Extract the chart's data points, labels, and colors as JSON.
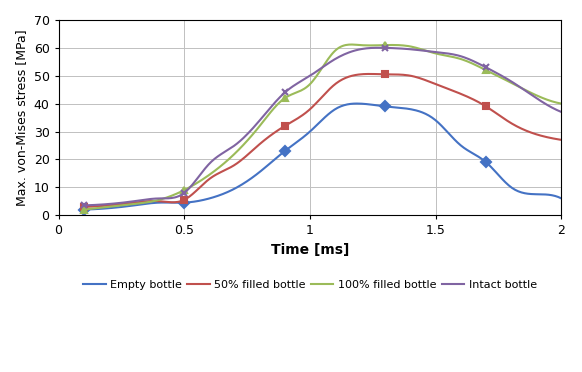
{
  "xlabel": "Time [ms]",
  "ylabel": "Max. von-Mises stress [MPa]",
  "xlim": [
    0,
    2.0
  ],
  "ylim": [
    0,
    70
  ],
  "yticks": [
    0,
    10,
    20,
    30,
    40,
    50,
    60,
    70
  ],
  "xticks": [
    0,
    0.5,
    1.0,
    1.5,
    2.0
  ],
  "xticklabels": [
    "0",
    "0.5",
    "1",
    "1.5",
    "2"
  ],
  "series": {
    "Empty bottle": {
      "color": "#4472C4",
      "marker": "D",
      "x": [
        0.1,
        0.2,
        0.3,
        0.4,
        0.5,
        0.6,
        0.7,
        0.8,
        0.9,
        1.0,
        1.1,
        1.2,
        1.3,
        1.4,
        1.5,
        1.6,
        1.7,
        1.8,
        1.9,
        2.0
      ],
      "y": [
        2.0,
        2.5,
        3.5,
        4.5,
        4.5,
        6.0,
        9.5,
        15.5,
        23.0,
        30.0,
        38.0,
        40.0,
        39.0,
        38.0,
        34.0,
        25.0,
        19.0,
        10.0,
        7.5,
        6.0
      ]
    },
    "50% filled bottle": {
      "color": "#C0504D",
      "marker": "s",
      "x": [
        0.1,
        0.2,
        0.3,
        0.4,
        0.5,
        0.6,
        0.7,
        0.8,
        0.9,
        1.0,
        1.1,
        1.2,
        1.3,
        1.4,
        1.5,
        1.6,
        1.7,
        1.8,
        1.9,
        2.0
      ],
      "y": [
        3.0,
        3.5,
        4.5,
        5.0,
        5.5,
        13.0,
        18.0,
        25.5,
        32.0,
        38.0,
        47.0,
        50.5,
        50.5,
        50.0,
        47.0,
        43.5,
        39.0,
        33.0,
        29.0,
        27.0
      ]
    },
    "100% filled bottle": {
      "color": "#9BBB59",
      "marker": "^",
      "x": [
        0.1,
        0.2,
        0.3,
        0.4,
        0.5,
        0.6,
        0.7,
        0.8,
        0.9,
        1.0,
        1.1,
        1.2,
        1.3,
        1.4,
        1.5,
        1.6,
        1.7,
        1.8,
        1.9,
        2.0
      ],
      "y": [
        2.0,
        3.0,
        4.0,
        5.5,
        9.0,
        14.5,
        22.0,
        32.0,
        42.0,
        47.0,
        59.0,
        61.0,
        61.0,
        60.5,
        58.0,
        56.0,
        52.0,
        47.5,
        43.0,
        40.0
      ]
    },
    "Intact bottle": {
      "color": "#8064A2",
      "marker": "x",
      "x": [
        0.1,
        0.2,
        0.3,
        0.4,
        0.5,
        0.6,
        0.7,
        0.8,
        0.9,
        1.0,
        1.1,
        1.2,
        1.3,
        1.4,
        1.5,
        1.6,
        1.7,
        1.8,
        1.9,
        2.0
      ],
      "y": [
        3.5,
        4.0,
        5.0,
        6.0,
        8.0,
        18.5,
        25.0,
        34.0,
        44.0,
        50.0,
        56.0,
        59.5,
        60.0,
        59.5,
        58.5,
        57.0,
        53.0,
        48.0,
        42.0,
        37.0
      ]
    }
  },
  "legend_order": [
    "Empty bottle",
    "50% filled bottle",
    "100% filled bottle",
    "Intact bottle"
  ],
  "background_color": "#FFFFFF",
  "grid_color": "#C0C0C0",
  "marker_every": 4
}
